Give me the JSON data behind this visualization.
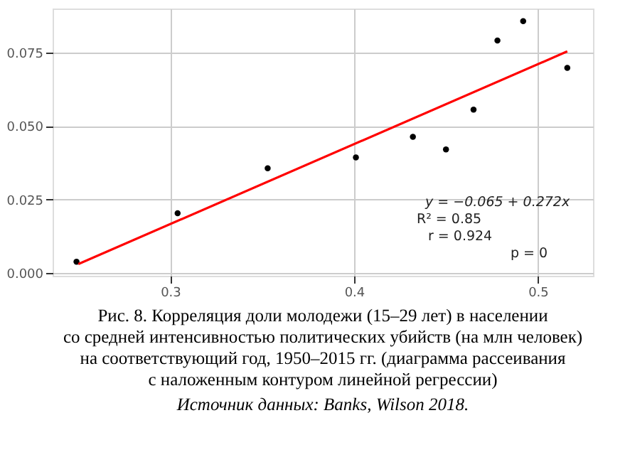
{
  "chart_data": {
    "type": "scatter",
    "title": "Рис. 8. Корреляция доли молодежи (15–29 лет) в населении\nсо средней интенсивностью политических убийств (на млн человек)\nна соответствующий год, 1950–2015 гг. (диаграмма рассеивания\nс наложенным контуром линейной регрессии)",
    "series": [
      {
        "marker": "circle",
        "color": "#000000",
        "x": [
          0.249,
          0.304,
          0.353,
          0.401,
          0.432,
          0.45,
          0.465,
          0.478,
          0.492,
          0.516
        ],
        "values": [
          0.0038,
          0.0203,
          0.0356,
          0.0393,
          0.0463,
          0.042,
          0.0556,
          0.0791,
          0.0857,
          0.0698
        ]
      },
      {
        "type": "line",
        "color": "#ff0000",
        "x": [
          0.25,
          0.516
        ],
        "values": [
          0.003,
          0.0754
        ]
      }
    ],
    "xlim": [
      0.236,
      0.53
    ],
    "ylim": [
      -0.001,
      0.09
    ],
    "xticks": [
      {
        "value": 0.3,
        "label": "0.3"
      },
      {
        "value": 0.4,
        "label": "0.4"
      },
      {
        "value": 0.5,
        "label": "0.5"
      }
    ],
    "yticks": [
      {
        "value": 0,
        "label": "0.000"
      },
      {
        "value": 0.025,
        "label": "0.025"
      },
      {
        "value": 0.05,
        "label": "0.050"
      },
      {
        "value": 0.075,
        "label": "0.075"
      }
    ],
    "grid": true,
    "annotations": [
      "y = −0.065 + 0.272x",
      "R² = 0.85",
      "r = 0.924",
      "p = 0",
      "Источник данных: Banks, Wilson 2018."
    ]
  }
}
